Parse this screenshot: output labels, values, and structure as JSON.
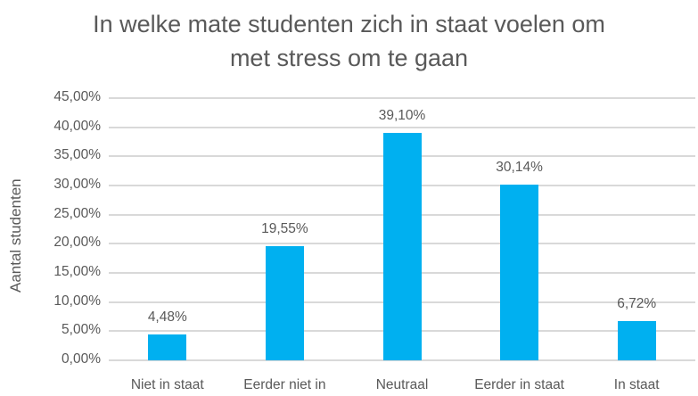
{
  "chart_data": {
    "type": "bar",
    "title": "In welke mate  studenten zich in staat voelen om met stress om te gaan",
    "title_lines": [
      "In welke mate  studenten zich in staat voelen om",
      "met stress om te gaan"
    ],
    "xlabel": "",
    "ylabel": "Aantal studenten",
    "categories": [
      "Niet in staat",
      "Eerder niet in",
      "Neutraal",
      "Eerder in staat",
      "In staat"
    ],
    "values": [
      4.48,
      19.55,
      39.1,
      30.14,
      6.72
    ],
    "data_labels": [
      "4,48%",
      "19,55%",
      "39,10%",
      "30,14%",
      "6,72%"
    ],
    "ylim": [
      0,
      45
    ],
    "yticks": [
      "0,00%",
      "5,00%",
      "10,00%",
      "15,00%",
      "20,00%",
      "25,00%",
      "30,00%",
      "35,00%",
      "40,00%",
      "45,00%"
    ],
    "grid": true,
    "legend": null,
    "bar_color": "#00B0F0"
  }
}
